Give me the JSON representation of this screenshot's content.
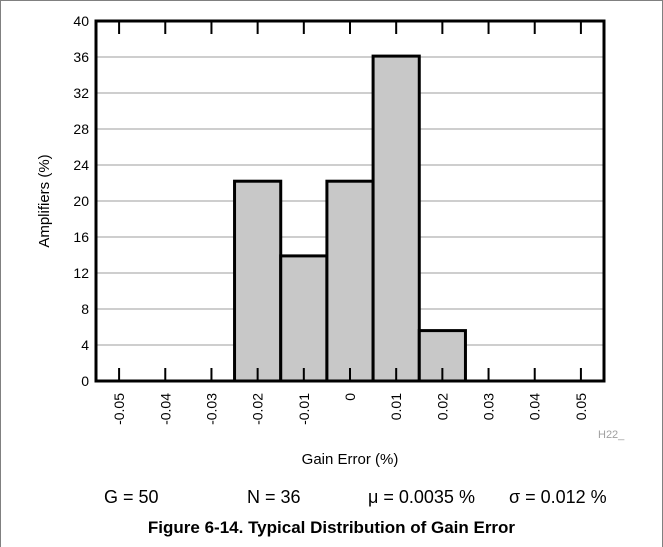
{
  "chart_data": {
    "type": "bar",
    "categories": [
      "-0.05",
      "-0.04",
      "-0.03",
      "-0.02",
      "-0.01",
      "0",
      "0.01",
      "0.02",
      "0.03",
      "0.04",
      "0.05"
    ],
    "values": [
      0,
      0,
      0,
      22.2,
      13.9,
      22.2,
      36.1,
      5.6,
      0,
      0,
      0
    ],
    "title": "",
    "xlabel": "Gain Error (%)",
    "ylabel": "Amplifiers (%)",
    "ylim": [
      0,
      40
    ],
    "yticks": [
      "0",
      "4",
      "8",
      "12",
      "16",
      "20",
      "24",
      "28",
      "32",
      "36",
      "40"
    ],
    "grid": true,
    "bar_color": "#c8c8c8",
    "watermark": "H22_"
  },
  "stats": {
    "gain": "G = 50",
    "n": "N = 36",
    "mu": "μ = 0.0035 %",
    "sigma": "σ = 0.012 %"
  },
  "caption": "Figure 6-14. Typical Distribution of Gain Error"
}
